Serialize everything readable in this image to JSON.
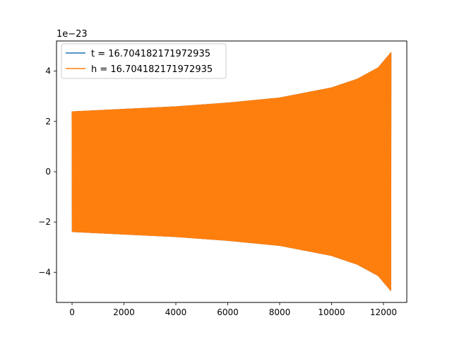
{
  "chart_data": {
    "type": "line",
    "title": "",
    "xlabel": "",
    "ylabel": "",
    "y_offset_label": "1e−23",
    "xlim": [
      -600,
      12900
    ],
    "ylim": [
      -5.2,
      5.2
    ],
    "x_ticks": [
      0,
      2000,
      4000,
      6000,
      8000,
      10000,
      12000
    ],
    "x_tick_labels": [
      "0",
      "2000",
      "4000",
      "6000",
      "8000",
      "10000",
      "12000"
    ],
    "y_ticks": [
      -4,
      -2,
      0,
      2,
      4
    ],
    "y_tick_labels": [
      "−4",
      "−2",
      "0",
      "2",
      "4"
    ],
    "grid": false,
    "legend_position": "upper-left",
    "series": [
      {
        "name": "t = 16.704182171972935",
        "color": "#1f77b4",
        "envelope": {
          "x": [
            0,
            2000,
            4000,
            6000,
            8000,
            10000,
            11000,
            11800,
            12290
          ],
          "amplitude": [
            2.4,
            2.5,
            2.6,
            2.75,
            2.95,
            3.35,
            3.7,
            4.15,
            4.75
          ]
        }
      },
      {
        "name": "h = 16.704182171972935",
        "color": "#ff7f0e",
        "envelope": {
          "x": [
            0,
            2000,
            4000,
            6000,
            8000,
            10000,
            11000,
            11800,
            12290
          ],
          "amplitude": [
            2.4,
            2.5,
            2.6,
            2.75,
            2.95,
            3.35,
            3.7,
            4.15,
            4.75
          ]
        }
      }
    ]
  }
}
